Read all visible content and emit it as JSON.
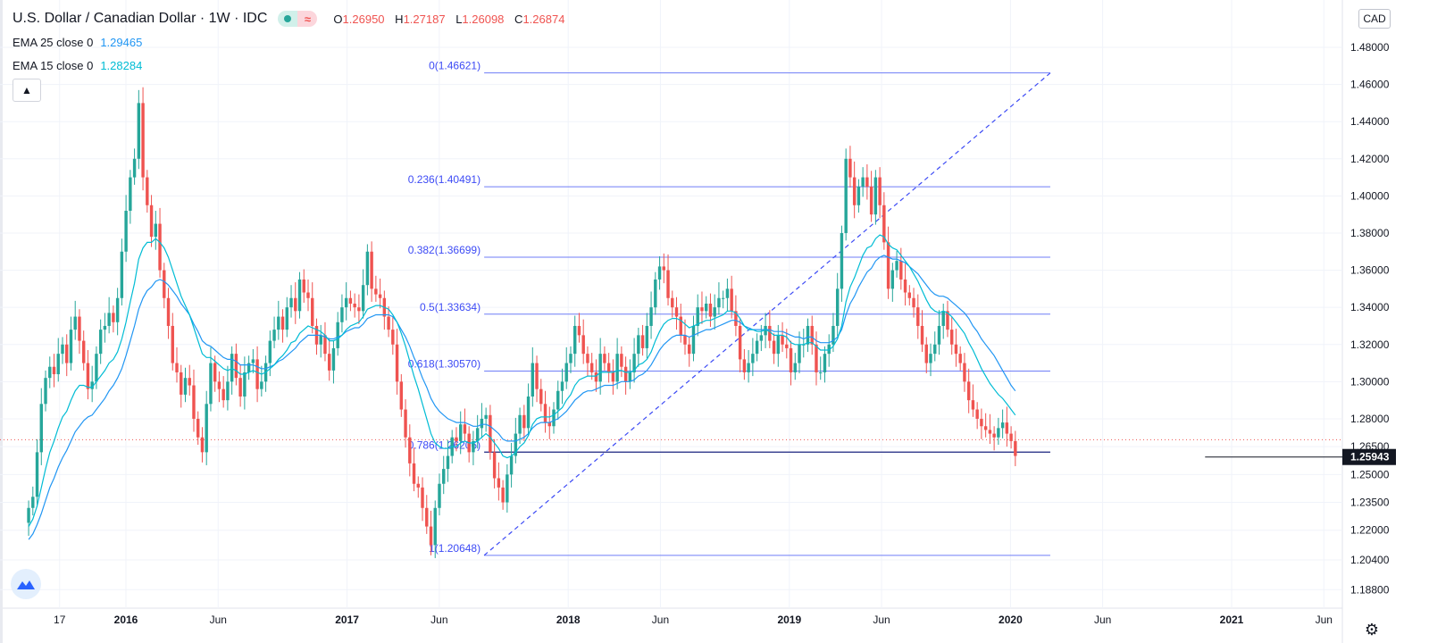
{
  "header": {
    "symbol_title": "U.S. Dollar / Canadian Dollar · 1W · IDC",
    "ohlc": [
      {
        "label": "O",
        "value": "1.26950"
      },
      {
        "label": "H",
        "value": "1.27187"
      },
      {
        "label": "L",
        "value": "1.26098"
      },
      {
        "label": "C",
        "value": "1.26874"
      }
    ],
    "ema25": {
      "label": "EMA 25 close 0",
      "value": "1.29465"
    },
    "ema15": {
      "label": "EMA 15 close 0",
      "value": "1.28284"
    }
  },
  "price_axis": {
    "currency": "CAD",
    "current_price": "1.25943"
  },
  "colors": {
    "up": "#26a69a",
    "down": "#ef5350",
    "ema25": "#2196f3",
    "ema15": "#00bcd4",
    "fib": "#3d4bf5",
    "price_label_bg": "#131722"
  },
  "icons": {
    "collapse": "chevron-up-icon",
    "logo": "tradingview-logo-icon",
    "settings": "gear-icon"
  },
  "chart_data": {
    "type": "candlestick",
    "title": "U.S. Dollar / Canadian Dollar · 1W · IDC",
    "ylim": [
      1.18,
      1.5
    ],
    "y_ticks": [
      "1.18800",
      "1.20400",
      "1.22000",
      "1.23500",
      "1.25000",
      "1.26500",
      "1.28000",
      "1.30000",
      "1.32000",
      "1.34000",
      "1.36000",
      "1.38000",
      "1.40000",
      "1.42000",
      "1.44000",
      "1.46000",
      "1.48000"
    ],
    "y_tick_values": [
      1.188,
      1.204,
      1.22,
      1.235,
      1.25,
      1.265,
      1.28,
      1.3,
      1.32,
      1.34,
      1.36,
      1.38,
      1.4,
      1.42,
      1.44,
      1.46,
      1.48
    ],
    "x_ticks": [
      {
        "label": "17",
        "t": 2015.7
      },
      {
        "label": "2016",
        "t": 2016.0,
        "bold": true
      },
      {
        "label": "Jun",
        "t": 2016.417
      },
      {
        "label": "2017",
        "t": 2017.0,
        "bold": true
      },
      {
        "label": "Jun",
        "t": 2017.417
      },
      {
        "label": "2018",
        "t": 2018.0,
        "bold": true
      },
      {
        "label": "Jun",
        "t": 2018.417
      },
      {
        "label": "2019",
        "t": 2019.0,
        "bold": true
      },
      {
        "label": "Jun",
        "t": 2019.417
      },
      {
        "label": "2020",
        "t": 2020.0,
        "bold": true
      },
      {
        "label": "Jun",
        "t": 2020.417
      },
      {
        "label": "2021",
        "t": 2021.0,
        "bold": true
      },
      {
        "label": "Jun",
        "t": 2021.417
      }
    ],
    "x_range": [
      2015.55,
      2021.52
    ],
    "candles_t_start": 2015.56,
    "candles_t_step": 0.01915,
    "closes": [
      1.232,
      1.238,
      1.262,
      1.288,
      1.302,
      1.308,
      1.304,
      1.315,
      1.32,
      1.31,
      1.328,
      1.335,
      1.322,
      1.31,
      1.296,
      1.3,
      1.315,
      1.328,
      1.33,
      1.337,
      1.332,
      1.345,
      1.37,
      1.392,
      1.41,
      1.42,
      1.45,
      1.41,
      1.395,
      1.378,
      1.385,
      1.36,
      1.345,
      1.33,
      1.31,
      1.305,
      1.293,
      1.302,
      1.298,
      1.28,
      1.27,
      1.262,
      1.288,
      1.31,
      1.3,
      1.296,
      1.29,
      1.3,
      1.315,
      1.302,
      1.292,
      1.305,
      1.31,
      1.312,
      1.296,
      1.3,
      1.31,
      1.322,
      1.328,
      1.335,
      1.328,
      1.34,
      1.345,
      1.338,
      1.355,
      1.348,
      1.345,
      1.33,
      1.32,
      1.325,
      1.315,
      1.306,
      1.318,
      1.332,
      1.34,
      1.345,
      1.342,
      1.34,
      1.338,
      1.352,
      1.37,
      1.35,
      1.347,
      1.345,
      1.335,
      1.328,
      1.32,
      1.3,
      1.285,
      1.27,
      1.256,
      1.245,
      1.243,
      1.232,
      1.222,
      1.212,
      1.232,
      1.245,
      1.253,
      1.26,
      1.27,
      1.268,
      1.277,
      1.272,
      1.262,
      1.268,
      1.275,
      1.28,
      1.282,
      1.262,
      1.248,
      1.243,
      1.235,
      1.25,
      1.26,
      1.272,
      1.282,
      1.275,
      1.292,
      1.31,
      1.296,
      1.288,
      1.278,
      1.276,
      1.285,
      1.295,
      1.3,
      1.31,
      1.315,
      1.33,
      1.325,
      1.315,
      1.31,
      1.305,
      1.3,
      1.315,
      1.31,
      1.305,
      1.3,
      1.315,
      1.308,
      1.3,
      1.305,
      1.315,
      1.325,
      1.318,
      1.33,
      1.34,
      1.355,
      1.362,
      1.36,
      1.345,
      1.34,
      1.335,
      1.325,
      1.32,
      1.315,
      1.33,
      1.34,
      1.338,
      1.342,
      1.335,
      1.34,
      1.345,
      1.345,
      1.35,
      1.338,
      1.33,
      1.312,
      1.305,
      1.31,
      1.315,
      1.322,
      1.325,
      1.33,
      1.322,
      1.315,
      1.325,
      1.32,
      1.318,
      1.305,
      1.31,
      1.32,
      1.32,
      1.33,
      1.32,
      1.305,
      1.305,
      1.315,
      1.32,
      1.33,
      1.35,
      1.38,
      1.42,
      1.41,
      1.395,
      1.405,
      1.41,
      1.405,
      1.39,
      1.41,
      1.395,
      1.375,
      1.35,
      1.36,
      1.365,
      1.355,
      1.348,
      1.345,
      1.34,
      1.33,
      1.32,
      1.31,
      1.315,
      1.32,
      1.33,
      1.338,
      1.328,
      1.32,
      1.315,
      1.31,
      1.3,
      1.29,
      1.285,
      1.28,
      1.276,
      1.274,
      1.272,
      1.27,
      1.275,
      1.278,
      1.272,
      1.268,
      1.26
    ],
    "ema15": [
      1.222,
      1.226,
      1.233,
      1.243,
      1.253,
      1.262,
      1.268,
      1.275,
      1.281,
      1.284,
      1.29,
      1.295,
      1.298,
      1.298,
      1.297,
      1.297,
      1.3,
      1.303,
      1.306,
      1.31,
      1.312,
      1.316,
      1.323,
      1.332,
      1.343,
      1.353,
      1.366,
      1.372,
      1.375,
      1.375,
      1.377,
      1.375,
      1.372,
      1.367,
      1.36,
      1.353,
      1.346,
      1.341,
      1.336,
      1.329,
      1.322,
      1.315,
      1.313,
      1.313,
      1.311,
      1.309,
      1.307,
      1.306,
      1.307,
      1.306,
      1.304,
      1.304,
      1.305,
      1.306,
      1.305,
      1.304,
      1.305,
      1.307,
      1.309,
      1.312,
      1.314,
      1.317,
      1.321,
      1.322,
      1.326,
      1.328,
      1.33,
      1.329,
      1.328,
      1.327,
      1.325,
      1.322,
      1.322,
      1.323,
      1.325,
      1.328,
      1.33,
      1.331,
      1.332,
      1.335,
      1.339,
      1.34,
      1.341,
      1.341,
      1.34,
      1.339,
      1.336,
      1.332,
      1.326,
      1.319,
      1.311,
      1.303,
      1.296,
      1.288,
      1.28,
      1.272,
      1.267,
      1.265,
      1.264,
      1.264,
      1.265,
      1.265,
      1.267,
      1.268,
      1.267,
      1.267,
      1.268,
      1.27,
      1.272,
      1.27,
      1.267,
      1.264,
      1.26,
      1.259,
      1.26,
      1.262,
      1.265,
      1.267,
      1.271,
      1.277,
      1.28,
      1.281,
      1.281,
      1.281,
      1.282,
      1.284,
      1.286,
      1.29,
      1.293,
      1.298,
      1.301,
      1.302,
      1.303,
      1.303,
      1.303,
      1.305,
      1.305,
      1.305,
      1.305,
      1.306,
      1.306,
      1.305,
      1.305,
      1.306,
      1.309,
      1.31,
      1.312,
      1.316,
      1.322,
      1.327,
      1.331,
      1.333,
      1.334,
      1.334,
      1.333,
      1.331,
      1.329,
      1.33,
      1.331,
      1.332,
      1.333,
      1.333,
      1.334,
      1.335,
      1.336,
      1.338,
      1.338,
      1.337,
      1.334,
      1.33,
      1.328,
      1.328,
      1.327,
      1.327,
      1.328,
      1.327,
      1.325,
      1.325,
      1.325,
      1.324,
      1.321,
      1.32,
      1.32,
      1.32,
      1.321,
      1.321,
      1.319,
      1.317,
      1.317,
      1.317,
      1.319,
      1.323,
      1.33,
      1.343,
      1.351,
      1.356,
      1.362,
      1.368,
      1.372,
      1.373,
      1.377,
      1.379,
      1.378,
      1.374,
      1.372,
      1.371,
      1.368,
      1.365,
      1.362,
      1.358,
      1.354,
      1.349,
      1.344,
      1.34,
      1.338,
      1.337,
      1.338,
      1.337,
      1.335,
      1.332,
      1.329,
      1.326,
      1.321,
      1.317,
      1.312,
      1.307,
      1.303,
      1.299,
      1.296,
      1.293,
      1.291,
      1.288,
      1.285,
      1.282
    ],
    "ema25": [
      1.215,
      1.218,
      1.223,
      1.229,
      1.236,
      1.243,
      1.248,
      1.254,
      1.259,
      1.263,
      1.268,
      1.273,
      1.276,
      1.279,
      1.281,
      1.282,
      1.285,
      1.288,
      1.291,
      1.295,
      1.298,
      1.302,
      1.307,
      1.314,
      1.322,
      1.33,
      1.339,
      1.345,
      1.349,
      1.351,
      1.354,
      1.355,
      1.354,
      1.352,
      1.349,
      1.346,
      1.342,
      1.339,
      1.336,
      1.331,
      1.327,
      1.322,
      1.32,
      1.319,
      1.317,
      1.315,
      1.313,
      1.312,
      1.312,
      1.311,
      1.309,
      1.309,
      1.309,
      1.309,
      1.308,
      1.307,
      1.307,
      1.308,
      1.309,
      1.311,
      1.312,
      1.314,
      1.316,
      1.318,
      1.321,
      1.323,
      1.325,
      1.325,
      1.325,
      1.325,
      1.324,
      1.323,
      1.323,
      1.324,
      1.325,
      1.327,
      1.328,
      1.329,
      1.329,
      1.331,
      1.334,
      1.335,
      1.336,
      1.336,
      1.336,
      1.336,
      1.335,
      1.332,
      1.328,
      1.324,
      1.319,
      1.313,
      1.308,
      1.302,
      1.297,
      1.291,
      1.287,
      1.284,
      1.282,
      1.28,
      1.279,
      1.278,
      1.278,
      1.278,
      1.277,
      1.276,
      1.276,
      1.277,
      1.277,
      1.276,
      1.274,
      1.272,
      1.269,
      1.268,
      1.268,
      1.268,
      1.269,
      1.27,
      1.272,
      1.275,
      1.277,
      1.278,
      1.278,
      1.278,
      1.279,
      1.28,
      1.282,
      1.284,
      1.287,
      1.29,
      1.292,
      1.294,
      1.295,
      1.295,
      1.296,
      1.297,
      1.298,
      1.298,
      1.298,
      1.299,
      1.3,
      1.3,
      1.3,
      1.301,
      1.303,
      1.304,
      1.306,
      1.309,
      1.313,
      1.317,
      1.32,
      1.322,
      1.324,
      1.325,
      1.325,
      1.325,
      1.324,
      1.325,
      1.326,
      1.327,
      1.328,
      1.328,
      1.329,
      1.33,
      1.331,
      1.332,
      1.333,
      1.333,
      1.332,
      1.33,
      1.329,
      1.328,
      1.328,
      1.328,
      1.328,
      1.328,
      1.327,
      1.327,
      1.327,
      1.326,
      1.325,
      1.324,
      1.324,
      1.323,
      1.324,
      1.324,
      1.322,
      1.321,
      1.321,
      1.321,
      1.322,
      1.324,
      1.328,
      1.336,
      1.342,
      1.346,
      1.351,
      1.355,
      1.359,
      1.361,
      1.365,
      1.367,
      1.368,
      1.367,
      1.366,
      1.366,
      1.365,
      1.364,
      1.362,
      1.36,
      1.358,
      1.355,
      1.352,
      1.349,
      1.347,
      1.346,
      1.346,
      1.345,
      1.343,
      1.341,
      1.339,
      1.337,
      1.334,
      1.33,
      1.327,
      1.323,
      1.32,
      1.317,
      1.314,
      1.31,
      1.306,
      1.302,
      1.298,
      1.295
    ],
    "current_price": 1.25943,
    "current_price_line_y": 1.26874,
    "fibonacci": {
      "x_start": 2017.62,
      "x_end": 2020.18,
      "levels": [
        {
          "ratio": "0",
          "price": 1.46621,
          "label": "0(1.46621)"
        },
        {
          "ratio": "0.236",
          "price": 1.40491,
          "label": "0.236(1.40491)"
        },
        {
          "ratio": "0.382",
          "price": 1.36699,
          "label": "0.382(1.36699)"
        },
        {
          "ratio": "0.5",
          "price": 1.33634,
          "label": "0.5(1.33634)"
        },
        {
          "ratio": "0.618",
          "price": 1.3057,
          "label": "0.618(1.30570)"
        },
        {
          "ratio": "0.786",
          "price": 1.26206,
          "label": "0.786(1.26206)"
        },
        {
          "ratio": "1",
          "price": 1.20648,
          "label": "1(1.20648)"
        }
      ],
      "trend_from": {
        "t": 2017.62,
        "p": 1.20648
      },
      "trend_to": {
        "t": 2020.18,
        "p": 1.46621
      }
    },
    "horizontal_line": {
      "price": 1.25943,
      "t_start": 2020.88
    }
  }
}
